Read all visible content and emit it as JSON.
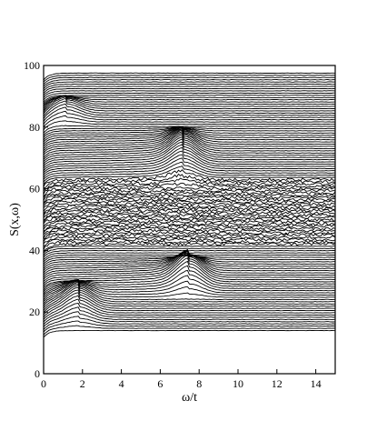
{
  "chart_data": {
    "type": "line",
    "title": "",
    "xlabel": "ω/t",
    "ylabel": "S(x,ω)",
    "xlim": [
      0,
      15
    ],
    "ylim": [
      0,
      100
    ],
    "xticks": [
      0,
      2,
      4,
      6,
      8,
      10,
      12,
      14
    ],
    "yticks": [
      0,
      20,
      40,
      60,
      80,
      100
    ],
    "grid": false,
    "legend": "none",
    "series_description": "waterfall of stacked spectra S(x,ω) vs ω/t",
    "stack": {
      "count": 118,
      "baseline_start": 14,
      "baseline_step": 0.72
    },
    "features": [
      {
        "omega": 1.8,
        "offset_range": [
          14,
          30
        ],
        "amplitude": 4.5
      },
      {
        "omega": 7.5,
        "offset_range": [
          24,
          38
        ],
        "amplitude": 6.0
      },
      {
        "omega": 7.2,
        "offset_range": [
          60,
          80
        ],
        "amplitude": 5.0
      },
      {
        "omega": 1.2,
        "offset_range": [
          80,
          90
        ],
        "amplitude": 3.0
      }
    ],
    "noisy_band": {
      "offset_range": [
        42,
        63
      ],
      "noise": 0.45
    }
  }
}
